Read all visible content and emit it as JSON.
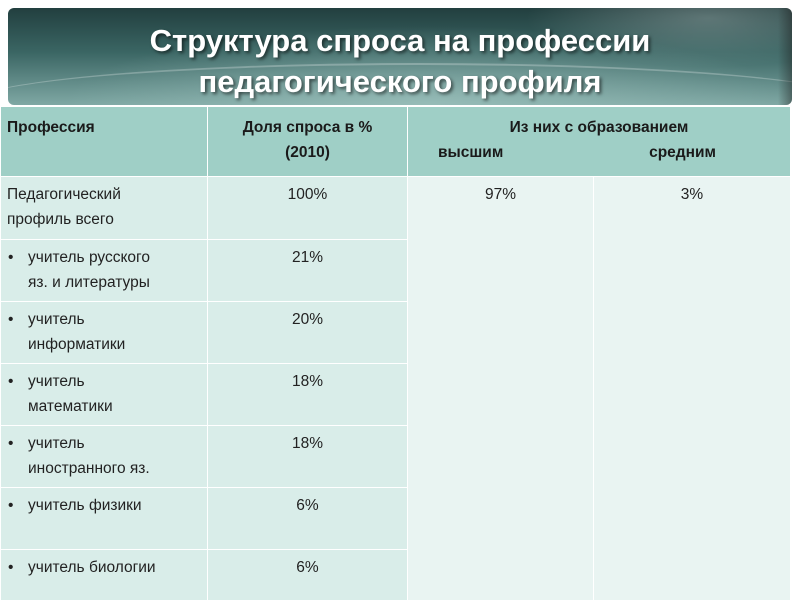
{
  "title": {
    "line1": "Структура спроса на профессии",
    "line2": "педагогического профиля"
  },
  "table": {
    "headers": {
      "profession": "Профессия",
      "share_line1": "Доля спроса в %",
      "share_line2": "(2010)",
      "education": "Из них с образованием",
      "higher": "высшим",
      "secondary": "средним"
    },
    "total": {
      "label_line1": "Педагогический",
      "label_line2": "профиль всего",
      "share": "100%",
      "higher": "97%",
      "secondary": "3%"
    },
    "rows": [
      {
        "bullet": "•",
        "line1": "учитель русского",
        "line2": "яз. и литературы",
        "share": "21%"
      },
      {
        "bullet": "•",
        "line1": "учитель",
        "line2": "информатики",
        "share": "20%"
      },
      {
        "bullet": "•",
        "line1": "учитель",
        "line2": "математики",
        "share": "18%"
      },
      {
        "bullet": "•",
        "line1": "учитель",
        "line2": "иностранного яз.",
        "share": "18%"
      },
      {
        "bullet": "•",
        "line1": "учитель физики",
        "line2": "",
        "share": "6%"
      },
      {
        "bullet": "•",
        "line1": "учитель биологии",
        "line2": "",
        "share": "6%"
      }
    ]
  }
}
